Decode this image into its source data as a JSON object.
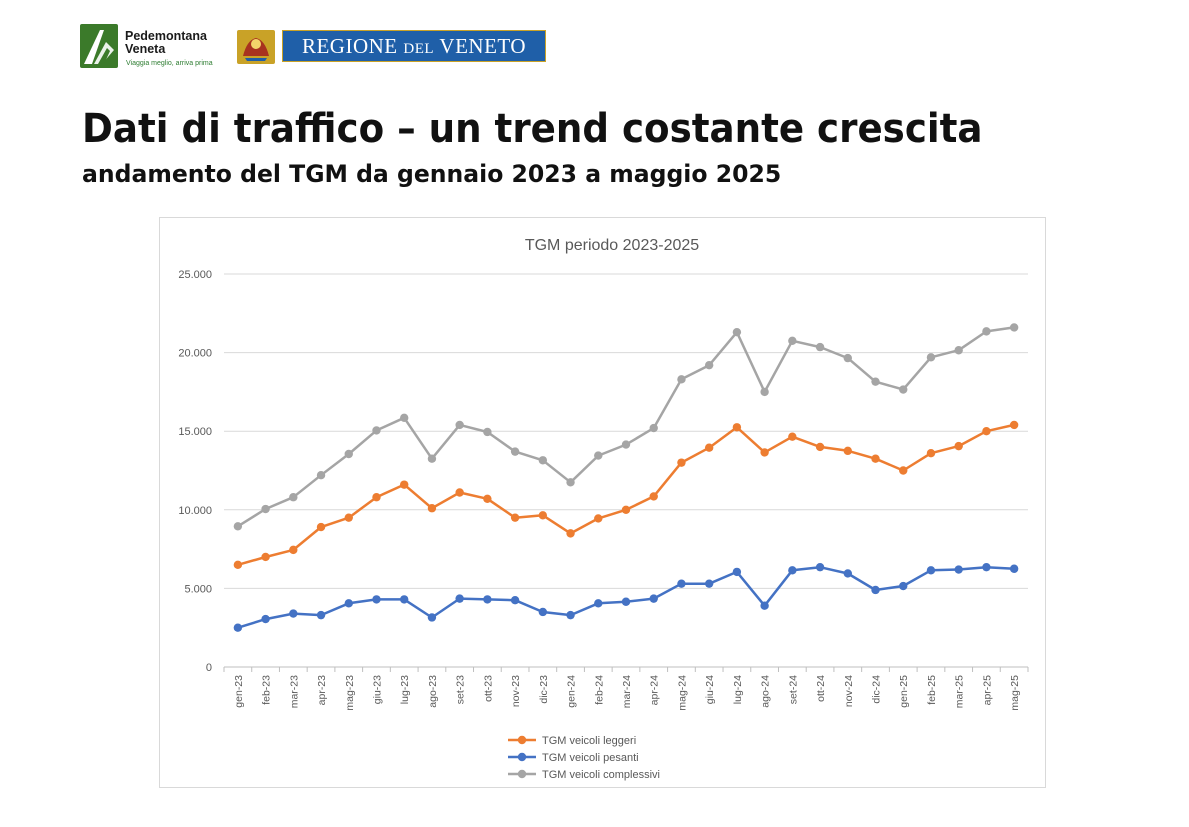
{
  "header": {
    "pedemontana": {
      "line1": "Pedemontana",
      "line2": "Veneta",
      "tagline": "Viaggia meglio, arriva prima"
    },
    "regione": {
      "part1": "REGIONE",
      "part2": "DEL",
      "part3": "VENETO"
    },
    "colors": {
      "ped_green": "#3b7a2a",
      "regione_blue": "#1f5fa8",
      "regione_gold": "#c9a227"
    }
  },
  "page": {
    "title": "Dati di traffico – un trend costante crescita",
    "subtitle": "andamento del TGM da gennaio 2023 a maggio 2025"
  },
  "chart_data": {
    "type": "line",
    "title": "TGM periodo 2023-2025",
    "xlabel": "",
    "ylabel": "",
    "ylim": [
      0,
      25000
    ],
    "yticks": [
      {
        "value": 0,
        "label": "0"
      },
      {
        "value": 5000,
        "label": "5.000"
      },
      {
        "value": 10000,
        "label": "10.000"
      },
      {
        "value": 15000,
        "label": "15.000"
      },
      {
        "value": 20000,
        "label": "20.000"
      },
      {
        "value": 25000,
        "label": "25.000"
      }
    ],
    "grid": true,
    "legend_position": "bottom",
    "categories": [
      "gen-23",
      "feb-23",
      "mar-23",
      "apr-23",
      "mag-23",
      "giu-23",
      "lug-23",
      "ago-23",
      "set-23",
      "ott-23",
      "nov-23",
      "dic-23",
      "gen-24",
      "feb-24",
      "mar-24",
      "apr-24",
      "mag-24",
      "giu-24",
      "lug-24",
      "ago-24",
      "set-24",
      "ott-24",
      "nov-24",
      "dic-24",
      "gen-25",
      "feb-25",
      "mar-25",
      "apr-25",
      "mag-25"
    ],
    "series": [
      {
        "name": "TGM veicoli leggeri",
        "color": "#ed7d31",
        "values": [
          6500,
          7000,
          7450,
          8900,
          9500,
          10800,
          11600,
          10100,
          11100,
          10700,
          9500,
          9650,
          8500,
          9450,
          10000,
          10850,
          13000,
          13950,
          15250,
          13650,
          14650,
          14000,
          13750,
          13250,
          12500,
          13600,
          14050,
          15000,
          15400
        ]
      },
      {
        "name": "TGM veicoli pesanti",
        "color": "#4472c4",
        "values": [
          2500,
          3050,
          3400,
          3300,
          4050,
          4300,
          4300,
          3150,
          4350,
          4300,
          4250,
          3500,
          3300,
          4050,
          4150,
          4350,
          5300,
          5300,
          6050,
          3900,
          6150,
          6350,
          5950,
          4900,
          5150,
          6150,
          6200,
          6350,
          6250
        ]
      },
      {
        "name": "TGM veicoli complessivi",
        "color": "#a5a5a5",
        "values": [
          8950,
          10050,
          10800,
          12200,
          13550,
          15050,
          15850,
          13250,
          15400,
          14950,
          13700,
          13150,
          11750,
          13450,
          14150,
          15200,
          18300,
          19200,
          21300,
          17500,
          20750,
          20350,
          19650,
          18150,
          17650,
          19700,
          20150,
          21350,
          21600
        ]
      }
    ]
  }
}
